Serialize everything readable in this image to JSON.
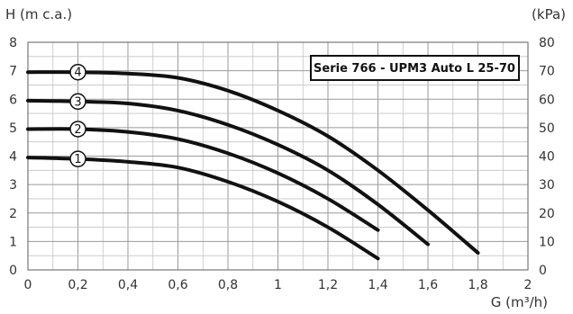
{
  "chart_data": {
    "type": "line",
    "title": "Serie 766 - UPM3 Auto L 25-70",
    "ylabel": "H (m c.a.)",
    "ylabel_right": "(kPa)",
    "xlabel": "G (m³/h)",
    "xlim": [
      0,
      2
    ],
    "ylim": [
      0,
      8
    ],
    "ylim_right": [
      0,
      80
    ],
    "grid": true,
    "x_ticks": [
      "0",
      "0,2",
      "0,4",
      "0,6",
      "0,8",
      "1",
      "1,2",
      "1,4",
      "1,6",
      "1,8",
      "2"
    ],
    "y_ticks": [
      "0",
      "1",
      "2",
      "3",
      "4",
      "5",
      "6",
      "7",
      "8"
    ],
    "y_ticks_right": [
      "0",
      "10",
      "20",
      "30",
      "40",
      "50",
      "60",
      "70",
      "80"
    ],
    "series": [
      {
        "name": "1",
        "x": [
          0,
          0.2,
          0.4,
          0.6,
          0.8,
          1.0,
          1.2,
          1.4
        ],
        "y": [
          3.95,
          3.9,
          3.8,
          3.6,
          3.1,
          2.4,
          1.5,
          0.4
        ]
      },
      {
        "name": "2",
        "x": [
          0,
          0.2,
          0.4,
          0.6,
          0.8,
          1.0,
          1.2,
          1.4
        ],
        "y": [
          4.95,
          4.95,
          4.85,
          4.6,
          4.1,
          3.4,
          2.5,
          1.4
        ]
      },
      {
        "name": "3",
        "x": [
          0,
          0.2,
          0.4,
          0.6,
          0.8,
          1.0,
          1.2,
          1.4,
          1.6
        ],
        "y": [
          5.95,
          5.92,
          5.85,
          5.6,
          5.1,
          4.4,
          3.5,
          2.3,
          0.9
        ]
      },
      {
        "name": "4",
        "x": [
          0,
          0.2,
          0.4,
          0.6,
          0.8,
          1.0,
          1.2,
          1.4,
          1.6,
          1.8
        ],
        "y": [
          6.95,
          6.95,
          6.9,
          6.75,
          6.3,
          5.6,
          4.7,
          3.5,
          2.1,
          0.6
        ]
      }
    ],
    "curve_label_x": 0.2,
    "legend_position": "top-right"
  }
}
